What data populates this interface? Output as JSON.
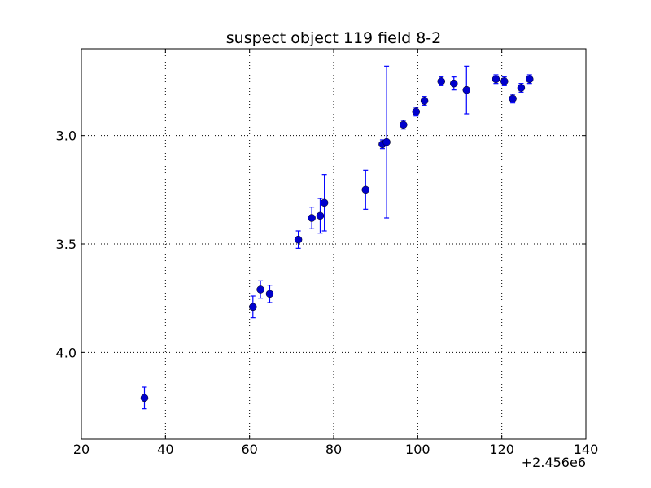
{
  "chart_data": {
    "type": "scatter",
    "title": "suspect object 119 field 8-2",
    "xlabel": "",
    "ylabel": "",
    "x_offset_label": "+2.456e6",
    "xlim": [
      20,
      140
    ],
    "ylim": [
      4.4,
      2.6
    ],
    "y_inverted": true,
    "grid": true,
    "x_ticks": [
      20,
      40,
      60,
      80,
      100,
      120,
      140
    ],
    "x_tick_labels": [
      "20",
      "40",
      "60",
      "80",
      "100",
      "120",
      "140"
    ],
    "y_ticks": [
      3.0,
      3.5,
      4.0
    ],
    "y_tick_labels": [
      "3.0",
      "3.5",
      "4.0"
    ],
    "marker_color": "#0000cc",
    "errorbar_color": "#0000ff",
    "points": [
      {
        "x": 35.0,
        "y": 4.21,
        "yerr": 0.05
      },
      {
        "x": 60.8,
        "y": 3.79,
        "yerr": 0.05
      },
      {
        "x": 62.6,
        "y": 3.71,
        "yerr": 0.04
      },
      {
        "x": 64.8,
        "y": 3.73,
        "yerr": 0.04
      },
      {
        "x": 71.6,
        "y": 3.48,
        "yerr": 0.04
      },
      {
        "x": 74.8,
        "y": 3.38,
        "yerr": 0.05
      },
      {
        "x": 76.8,
        "y": 3.37,
        "yerr": 0.08
      },
      {
        "x": 77.8,
        "y": 3.31,
        "yerr": 0.13
      },
      {
        "x": 87.6,
        "y": 3.25,
        "yerr": 0.09
      },
      {
        "x": 91.6,
        "y": 3.04,
        "yerr": 0.02
      },
      {
        "x": 92.6,
        "y": 3.03,
        "yerr": 0.35
      },
      {
        "x": 96.6,
        "y": 2.95,
        "yerr": 0.02
      },
      {
        "x": 99.6,
        "y": 2.89,
        "yerr": 0.02
      },
      {
        "x": 101.6,
        "y": 2.84,
        "yerr": 0.02
      },
      {
        "x": 105.6,
        "y": 2.75,
        "yerr": 0.02
      },
      {
        "x": 108.6,
        "y": 2.76,
        "yerr": 0.03
      },
      {
        "x": 111.6,
        "y": 2.79,
        "yerr": 0.11
      },
      {
        "x": 118.6,
        "y": 2.74,
        "yerr": 0.02
      },
      {
        "x": 120.6,
        "y": 2.75,
        "yerr": 0.02
      },
      {
        "x": 122.6,
        "y": 2.83,
        "yerr": 0.02
      },
      {
        "x": 124.6,
        "y": 2.78,
        "yerr": 0.02
      },
      {
        "x": 126.6,
        "y": 2.74,
        "yerr": 0.02
      }
    ]
  }
}
